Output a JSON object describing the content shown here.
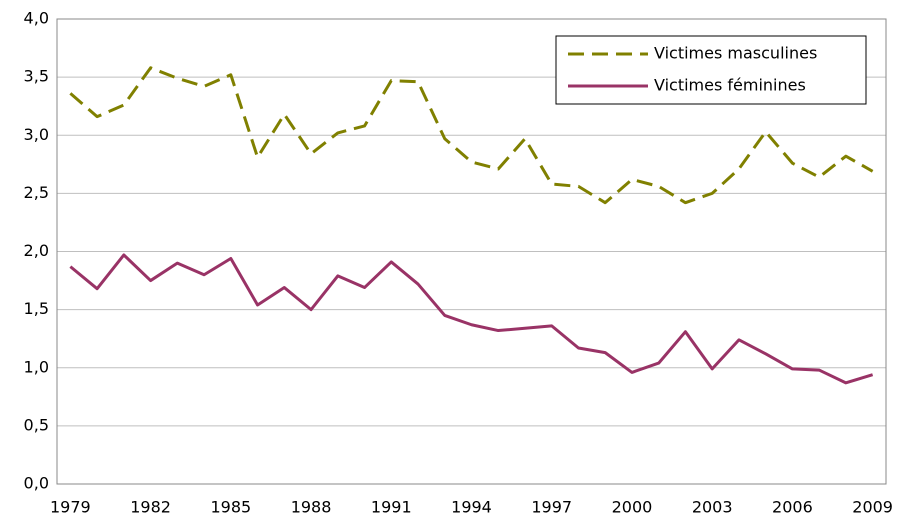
{
  "chart_data": {
    "type": "line",
    "categories": [
      "1979",
      null,
      null,
      "1982",
      null,
      null,
      "1985",
      null,
      null,
      "1988",
      null,
      null,
      "1991",
      null,
      null,
      "1994",
      null,
      null,
      "1997",
      null,
      null,
      "2000",
      null,
      null,
      "2003",
      null,
      null,
      "2006",
      null,
      null,
      "2009"
    ],
    "series": [
      {
        "name": "Victimes masculines",
        "color": "#808000",
        "dash": true,
        "values": [
          3.36,
          3.16,
          3.26,
          3.58,
          3.49,
          3.42,
          3.52,
          2.81,
          3.18,
          2.84,
          3.02,
          3.08,
          3.47,
          3.46,
          2.97,
          2.77,
          2.71,
          2.97,
          2.58,
          2.56,
          2.42,
          2.62,
          2.56,
          2.42,
          2.5,
          2.71,
          3.03,
          2.76,
          2.64,
          2.82,
          2.69
        ]
      },
      {
        "name": "Victimes féminines",
        "color": "#993366",
        "dash": false,
        "values": [
          1.87,
          1.68,
          1.97,
          1.75,
          1.9,
          1.8,
          1.94,
          1.54,
          1.69,
          1.5,
          1.79,
          1.69,
          1.91,
          1.72,
          1.45,
          1.37,
          1.32,
          1.34,
          1.36,
          1.17,
          1.13,
          0.96,
          1.04,
          1.31,
          0.99,
          1.24,
          1.12,
          0.99,
          0.98,
          0.87,
          0.94
        ]
      }
    ],
    "ylim": [
      0,
      4
    ],
    "yticks": [
      {
        "value": 0,
        "label": "0,0"
      },
      {
        "value": 0.5,
        "label": "0,5"
      },
      {
        "value": 1,
        "label": "1,0"
      },
      {
        "value": 1.5,
        "label": "1,5"
      },
      {
        "value": 2,
        "label": "2,0"
      },
      {
        "value": 2.5,
        "label": "2,5"
      },
      {
        "value": 3,
        "label": "3,0"
      },
      {
        "value": 3.5,
        "label": "3,5"
      },
      {
        "value": 4,
        "label": "4,0"
      }
    ],
    "grid": true,
    "legend": "upper right"
  }
}
